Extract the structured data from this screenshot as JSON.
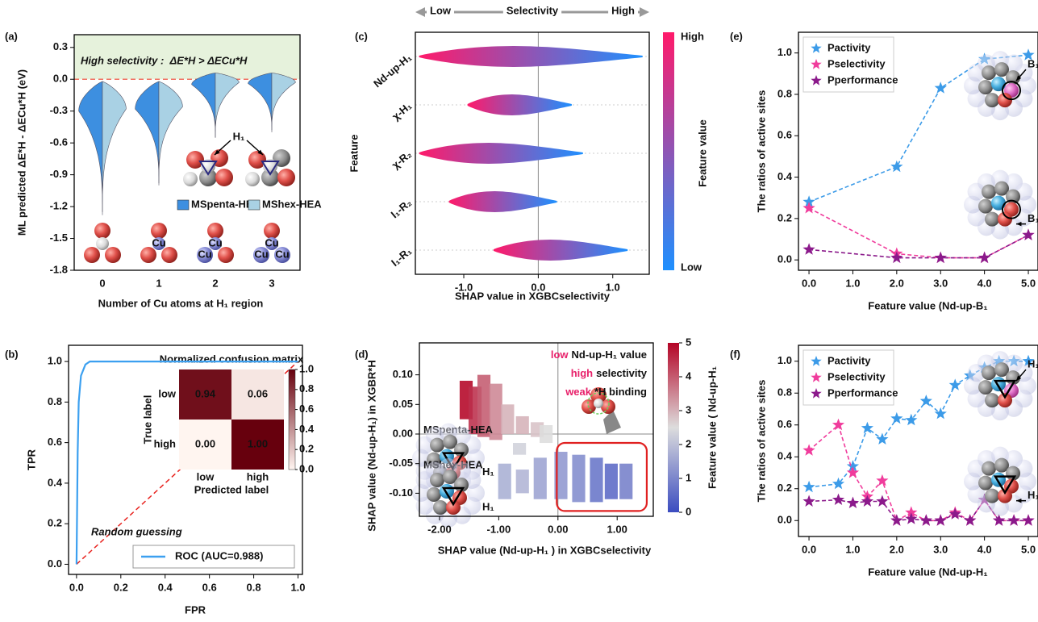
{
  "chart_data": [
    {
      "type": "violin",
      "panel_label": "(a)",
      "annotation": "High selectivity :  ΔE*H > ΔECu*H",
      "ylabel": "ML predicted ΔE*H - ΔECu*H (eV)",
      "xlabel": "Number of Cu atoms at H₁ region",
      "categories": [
        "0",
        "1",
        "2",
        "3"
      ],
      "series": [
        {
          "name": "MSpenta-HEA",
          "color": "#3d8fe0",
          "min": [
            -1.28,
            -1.0,
            -0.55,
            -0.5
          ],
          "peak": [
            -0.3,
            -0.28,
            -0.05,
            -0.04
          ],
          "max": [
            -0.02,
            -0.02,
            0.06,
            0.06
          ]
        },
        {
          "name": "MShex-HEA",
          "color": "#a9d1e4",
          "min": [
            -1.25,
            -0.98,
            -0.55,
            -0.48
          ],
          "peak": [
            -0.28,
            -0.26,
            -0.03,
            -0.03
          ],
          "max": [
            -0.02,
            -0.02,
            0.06,
            0.06
          ]
        }
      ],
      "ylim": [
        -1.8,
        0.42
      ],
      "yticks": [
        0.3,
        {
          "value": 0,
          "label": "0.0"
        },
        -0.3,
        -0.6,
        -0.9,
        -1.2,
        -1.5,
        -1.8
      ],
      "region_label": "H₁",
      "atom_label": "Cu"
    },
    {
      "type": "line",
      "panel_label": "(b)",
      "xlabel": "FPR",
      "ylabel": "TPR",
      "x": [
        0,
        0.005,
        0.01,
        0.02,
        0.04,
        0.06,
        1.0
      ],
      "series": [
        {
          "name": "ROC (AUC=0.988)",
          "color": "#3ca0f0",
          "values": [
            0,
            0.55,
            0.8,
            0.93,
            0.985,
            1.0,
            1.0
          ]
        }
      ],
      "annotation": "Random guessing",
      "legend": "lower right",
      "xlim": [
        -0.036,
        1.02
      ],
      "xticks": [
        {
          "value": 0,
          "label": "0.0"
        },
        0.2,
        0.4,
        0.6,
        0.8,
        {
          "value": 1,
          "label": "1.0"
        }
      ],
      "ylim": [
        -0.05,
        1.08
      ],
      "yticks": [
        {
          "value": 0,
          "label": "0.0"
        },
        0.2,
        0.4,
        0.6,
        0.8,
        {
          "value": 1,
          "label": "1.0"
        }
      ],
      "confusion_matrix": {
        "title": "Normalized confusion matrix",
        "xlabel": "Predicted label",
        "ylabel": "True label",
        "labels": [
          "low",
          "high"
        ],
        "values": [
          [
            0.94,
            0.06
          ],
          [
            0.0,
            1.0
          ]
        ],
        "value_labels": [
          [
            "0.94",
            "0.06"
          ],
          [
            "0.00",
            "1.00"
          ]
        ],
        "colormap": [
          "#fff5f0",
          "#67000d"
        ],
        "clim": [
          0,
          1
        ],
        "colorbar_ticks": [
          {
            "value": 0,
            "label": "0.0"
          },
          0.2,
          0.4,
          0.6,
          0.8,
          {
            "value": 1,
            "label": "1.0"
          }
        ]
      }
    },
    {
      "type": "beeswarm",
      "panel_label": "(c)",
      "top_arrow": {
        "low": "Low",
        "label": "Selectivity",
        "high": "High"
      },
      "features": [
        "Nd-up-H₁",
        "χ-H₁",
        "χ-R₂",
        "I₁-R₂",
        "I₁-R₁"
      ],
      "min": [
        -1.6,
        -0.95,
        -1.6,
        -1.2,
        -0.6
      ],
      "max": [
        1.4,
        0.45,
        0.6,
        0.25,
        1.2
      ],
      "xlim": [
        -1.65,
        1.49
      ],
      "xticks": [
        {
          "value": -1,
          "label": "-1.0"
        },
        {
          "value": 0,
          "label": "0.0"
        },
        {
          "value": 1,
          "label": "1.0"
        }
      ],
      "xlabel": "SHAP value in XGBCselectivity",
      "ylabel": "Feature",
      "colorbar": {
        "label": "Feature value",
        "high": "High",
        "low": "Low",
        "colors": [
          "#1e90ff",
          "#ff1a6a"
        ]
      }
    },
    {
      "type": "scatter",
      "panel_label": "(d)",
      "x": [
        -1.55,
        -1.4,
        -1.25,
        -1.05,
        -0.85,
        -0.6,
        -0.35,
        -0.2,
        -0.65,
        -0.9,
        -0.6,
        -0.3,
        0.05,
        0.35,
        0.65,
        0.9,
        1.15
      ],
      "y_low": [
        0.025,
        0.0,
        -0.005,
        -0.01,
        0.0,
        0.0,
        -0.005,
        -0.015,
        -0.035,
        -0.11,
        -0.1,
        -0.11,
        -0.11,
        -0.115,
        -0.115,
        -0.11,
        -0.11
      ],
      "y_high": [
        0.09,
        0.08,
        0.1,
        0.085,
        0.05,
        0.03,
        0.02,
        0.015,
        -0.015,
        -0.05,
        -0.06,
        -0.04,
        -0.03,
        -0.035,
        -0.04,
        -0.05,
        -0.05
      ],
      "feature_value": [
        5,
        4.5,
        4,
        3.5,
        3,
        3,
        2.8,
        2.5,
        2.3,
        1.7,
        1.8,
        1.5,
        1.3,
        1.1,
        0.7,
        0.5,
        0.9
      ],
      "xlim": [
        -2.34,
        1.61
      ],
      "xticks": [
        {
          "value": -2,
          "label": "-2.00"
        },
        {
          "value": -1,
          "label": "-1.00"
        },
        {
          "value": 0,
          "label": "0.00"
        },
        {
          "value": 1,
          "label": "1.00"
        }
      ],
      "ylim": [
        -0.139,
        0.154
      ],
      "yticks": [
        {
          "value": -0.1,
          "label": "-0.10"
        },
        -0.05,
        {
          "value": 0,
          "label": "0.00"
        },
        0.05,
        {
          "value": 0.1,
          "label": "0.10"
        }
      ],
      "xlabel": "SHAP value (Nd-up-H₁ ) in XGBCselectivity",
      "ylabel": "SHAP value (Nd-up-H₁) in XGBR*H",
      "annotations": [
        {
          "highlight": "low",
          "text": "Nd-up-H₁ value"
        },
        {
          "highlight": "high",
          "text": "selectivity"
        },
        {
          "highlight": "weak",
          "text": "*H binding"
        }
      ],
      "structure_labels": [
        "MSpenta-HEA",
        "MShex-HEA"
      ],
      "site_label": "H₁",
      "colorbar": {
        "label": "Feature value ( Nd-up-H₁",
        "clim": [
          0,
          5
        ],
        "ticks": [
          0,
          1,
          2,
          3,
          4,
          5
        ],
        "colormap": [
          "#3b4cc0",
          "#dddddd",
          "#b40426"
        ]
      }
    },
    {
      "type": "line",
      "panel_label": "(e)",
      "markers": "star",
      "legend": "upper left",
      "x": [
        0,
        2,
        3,
        4,
        5
      ],
      "series": [
        {
          "name": "Pactivity",
          "color": "#3c9be8",
          "values": [
            0.28,
            0.45,
            0.83,
            0.97,
            0.99
          ]
        },
        {
          "name": "Pselectivity",
          "color": "#f03c9c",
          "values": [
            0.25,
            0.03,
            0.01,
            0.01,
            0.12
          ]
        },
        {
          "name": "Pperformance",
          "color": "#8b1a8b",
          "values": [
            0.05,
            0.01,
            0.01,
            0.01,
            0.12
          ]
        }
      ],
      "xlim": [
        -0.24,
        5.22
      ],
      "xticks": [
        {
          "value": 0,
          "label": "0.0"
        },
        {
          "value": 1,
          "label": "1.0"
        },
        {
          "value": 2,
          "label": "2.0"
        },
        {
          "value": 3,
          "label": "3.0"
        },
        {
          "value": 4,
          "label": "4.0"
        },
        {
          "value": 5,
          "label": "5.0"
        }
      ],
      "ylim": [
        -0.05,
        1.1
      ],
      "yticks": [
        {
          "value": 0,
          "label": "0.0"
        },
        0.2,
        0.4,
        0.6,
        0.8,
        {
          "value": 1,
          "label": "1.0"
        }
      ],
      "ylabel": "The ratios of active sites",
      "xlabel": "Feature value (Nd-up-B₁",
      "site_label": "B₁"
    },
    {
      "type": "line",
      "panel_label": "(f)",
      "markers": "star",
      "legend": "upper left",
      "x": [
        0,
        0.67,
        1,
        1.33,
        1.67,
        2,
        2.33,
        2.67,
        3,
        3.33,
        3.67,
        4,
        4.33,
        4.67,
        5
      ],
      "series": [
        {
          "name": "Pactivity",
          "color": "#3c9be8",
          "values": [
            0.21,
            0.23,
            0.34,
            0.58,
            0.51,
            0.64,
            0.63,
            0.75,
            0.67,
            0.85,
            0.91,
            0.96,
            1.0,
            1.0,
            1.0
          ]
        },
        {
          "name": "Pselectivity",
          "color": "#f03c9c",
          "values": [
            0.44,
            0.6,
            0.3,
            0.15,
            0.25,
            0.0,
            0.05,
            0.0,
            0.0,
            0.05,
            0.0,
            0.13,
            0.0,
            0.0,
            0.0
          ]
        },
        {
          "name": "Pperformance",
          "color": "#8b1a8b",
          "values": [
            0.12,
            0.13,
            0.11,
            0.12,
            0.12,
            0.0,
            0.01,
            0.0,
            0.0,
            0.04,
            0.0,
            0.13,
            0.0,
            0.0,
            0.0
          ]
        }
      ],
      "xlim": [
        -0.24,
        5.22
      ],
      "xticks": [
        {
          "value": 0,
          "label": "0.0"
        },
        {
          "value": 1,
          "label": "1.0"
        },
        {
          "value": 2,
          "label": "2.0"
        },
        {
          "value": 3,
          "label": "3.0"
        },
        {
          "value": 4,
          "label": "4.0"
        },
        {
          "value": 5,
          "label": "5.0"
        }
      ],
      "ylim": [
        -0.1,
        1.1
      ],
      "yticks": [
        {
          "value": 0,
          "label": "0.0"
        },
        0.2,
        0.4,
        0.6,
        0.8,
        {
          "value": 1,
          "label": "1.0"
        }
      ],
      "ylabel": "The ratios of active sites",
      "xlabel": "Feature value (Nd-up-H₁",
      "site_label": "H₁"
    }
  ]
}
